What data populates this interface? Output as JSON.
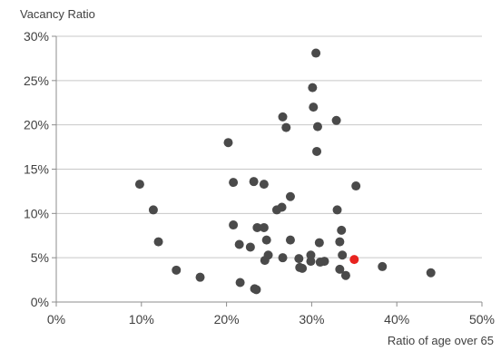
{
  "chart_data": {
    "type": "scatter",
    "ylabel": "Vacancy Ratio",
    "xlabel": "Ratio of age over 65",
    "xlim": [
      0,
      50
    ],
    "ylim": [
      0,
      30
    ],
    "x_ticks": [
      "0%",
      "10%",
      "20%",
      "30%",
      "40%",
      "50%"
    ],
    "y_ticks": [
      "0%",
      "5%",
      "10%",
      "15%",
      "20%",
      "25%",
      "30%"
    ],
    "grid": "horizontal",
    "colors": {
      "points": "#4a4a4a",
      "highlight": "#e8231f",
      "grid": "#c8c8c8",
      "axis": "#8c8c8c"
    },
    "series": [
      {
        "points": [
          [
            9.8,
            13.3
          ],
          [
            11.4,
            10.4
          ],
          [
            12.0,
            6.8
          ],
          [
            14.1,
            3.6
          ],
          [
            16.9,
            2.8
          ],
          [
            20.2,
            18.0
          ],
          [
            20.8,
            13.5
          ],
          [
            20.8,
            8.7
          ],
          [
            21.5,
            6.5
          ],
          [
            21.6,
            2.2
          ],
          [
            22.8,
            6.2
          ],
          [
            23.2,
            13.6
          ],
          [
            23.3,
            1.5
          ],
          [
            23.5,
            1.4
          ],
          [
            23.6,
            8.4
          ],
          [
            24.4,
            13.3
          ],
          [
            24.4,
            8.4
          ],
          [
            24.5,
            4.7
          ],
          [
            24.7,
            7.0
          ],
          [
            24.9,
            5.3
          ],
          [
            25.9,
            10.4
          ],
          [
            26.5,
            10.7
          ],
          [
            26.6,
            20.9
          ],
          [
            26.6,
            5.0
          ],
          [
            27.0,
            19.7
          ],
          [
            27.5,
            11.9
          ],
          [
            27.5,
            7.0
          ],
          [
            28.5,
            4.9
          ],
          [
            28.6,
            3.9
          ],
          [
            28.9,
            3.8
          ],
          [
            29.9,
            5.3
          ],
          [
            29.9,
            4.6
          ],
          [
            30.1,
            24.2
          ],
          [
            30.2,
            22.0
          ],
          [
            30.5,
            28.1
          ],
          [
            30.6,
            17.0
          ],
          [
            30.7,
            19.8
          ],
          [
            30.9,
            6.7
          ],
          [
            31.0,
            4.5
          ],
          [
            31.5,
            4.6
          ],
          [
            32.9,
            20.5
          ],
          [
            33.0,
            10.4
          ],
          [
            33.3,
            6.8
          ],
          [
            33.3,
            3.7
          ],
          [
            33.5,
            8.1
          ],
          [
            33.6,
            5.3
          ],
          [
            34.0,
            3.0
          ],
          [
            35.2,
            13.1
          ],
          [
            38.3,
            4.0
          ],
          [
            44.0,
            3.3
          ]
        ]
      },
      {
        "highlight": true,
        "points": [
          [
            35.0,
            4.8
          ]
        ]
      }
    ]
  }
}
